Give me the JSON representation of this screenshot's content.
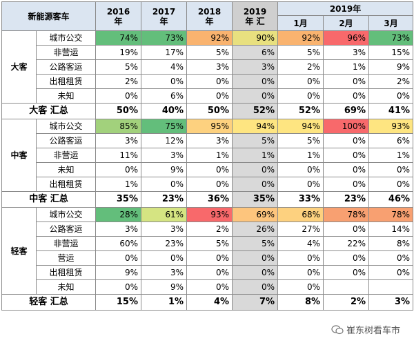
{
  "header": {
    "corner": "新能源客车",
    "years": [
      [
        "2016",
        "年"
      ],
      [
        "2017",
        "年"
      ],
      [
        "2018",
        "年"
      ],
      [
        "2019",
        "年 汇"
      ]
    ],
    "group_2019": "2019年",
    "months": [
      "1月",
      "2月",
      "3月"
    ]
  },
  "groups": [
    {
      "name": "大客",
      "rows": [
        {
          "label": "城市公交",
          "values": [
            "74%",
            "73%",
            "92%",
            "90%",
            "92%",
            "96%",
            "73%"
          ],
          "colors": [
            "#63be7b",
            "#63be7b",
            "#f9b36f",
            "#e8e07f",
            "#f9b36f",
            "#f8696b",
            "#63be7b"
          ]
        },
        {
          "label": "非营运",
          "values": [
            "19%",
            "17%",
            "5%",
            "6%",
            "5%",
            "3%",
            "15%"
          ]
        },
        {
          "label": "公路客运",
          "values": [
            "5%",
            "4%",
            "3%",
            "3%",
            "2%",
            "1%",
            "9%"
          ]
        },
        {
          "label": "出租租赁",
          "values": [
            "2%",
            "0%",
            "0%",
            "0%",
            "0%",
            "0%",
            "2%"
          ]
        },
        {
          "label": "未知",
          "values": [
            "0%",
            "6%",
            "0%",
            "0%",
            "0%",
            "0%",
            "0%"
          ]
        }
      ],
      "total": {
        "label": "大客 汇总",
        "values": [
          "50%",
          "40%",
          "50%",
          "52%",
          "52%",
          "69%",
          "41%"
        ]
      }
    },
    {
      "name": "中客",
      "rows": [
        {
          "label": "城市公交",
          "values": [
            "85%",
            "75%",
            "95%",
            "94%",
            "94%",
            "100%",
            "93%"
          ],
          "colors": [
            "#a2d17c",
            "#63be7b",
            "#fdd17f",
            "#fee581",
            "#fee581",
            "#f8696b",
            "#fee581"
          ]
        },
        {
          "label": "公路客运",
          "values": [
            "3%",
            "12%",
            "3%",
            "5%",
            "5%",
            "0%",
            "6%"
          ]
        },
        {
          "label": "非营运",
          "values": [
            "11%",
            "3%",
            "1%",
            "1%",
            "1%",
            "0%",
            "1%"
          ]
        },
        {
          "label": "未知",
          "values": [
            "0%",
            "9%",
            "0%",
            "0%",
            "0%",
            "0%",
            "0%"
          ]
        },
        {
          "label": "出租租赁",
          "values": [
            "1%",
            "0%",
            "0%",
            "0%",
            "0%",
            "0%",
            "0%"
          ]
        }
      ],
      "total": {
        "label": "中客 汇总",
        "values": [
          "35%",
          "23%",
          "36%",
          "35%",
          "33%",
          "23%",
          "46%"
        ]
      }
    },
    {
      "name": "轻客",
      "rows": [
        {
          "label": "城市公交",
          "values": [
            "28%",
            "61%",
            "93%",
            "69%",
            "68%",
            "78%",
            "78%"
          ],
          "colors": [
            "#63be7b",
            "#d5e482",
            "#f8696b",
            "#fdc57d",
            "#fdd17f",
            "#f8a071",
            "#f8a071"
          ]
        },
        {
          "label": "公路客运",
          "values": [
            "3%",
            "3%",
            "2%",
            "26%",
            "27%",
            "0%",
            "14%"
          ]
        },
        {
          "label": "非营运",
          "values": [
            "60%",
            "23%",
            "5%",
            "5%",
            "4%",
            "22%",
            "8%"
          ]
        },
        {
          "label": "营运",
          "values": [
            "0%",
            "0%",
            "0%",
            "0%",
            "0%",
            "0%",
            "0%"
          ]
        },
        {
          "label": "出租租赁",
          "values": [
            "9%",
            "3%",
            "0%",
            "0%",
            "0%",
            "0%",
            "0%"
          ]
        },
        {
          "label": "未知",
          "values": [
            "0%",
            "9%",
            "0%",
            "0%",
            "0%",
            "",
            ""
          ]
        }
      ],
      "total": {
        "label": "轻客 汇总",
        "values": [
          "15%",
          "1%",
          "4%",
          "7%",
          "8%",
          "2%",
          "3%"
        ]
      }
    }
  ],
  "watermark": "崔东树看车市",
  "colors": {
    "header_bg": "#dbe5f1",
    "highlight_col": "#d9d9d9",
    "border": "#8a8a8a"
  }
}
